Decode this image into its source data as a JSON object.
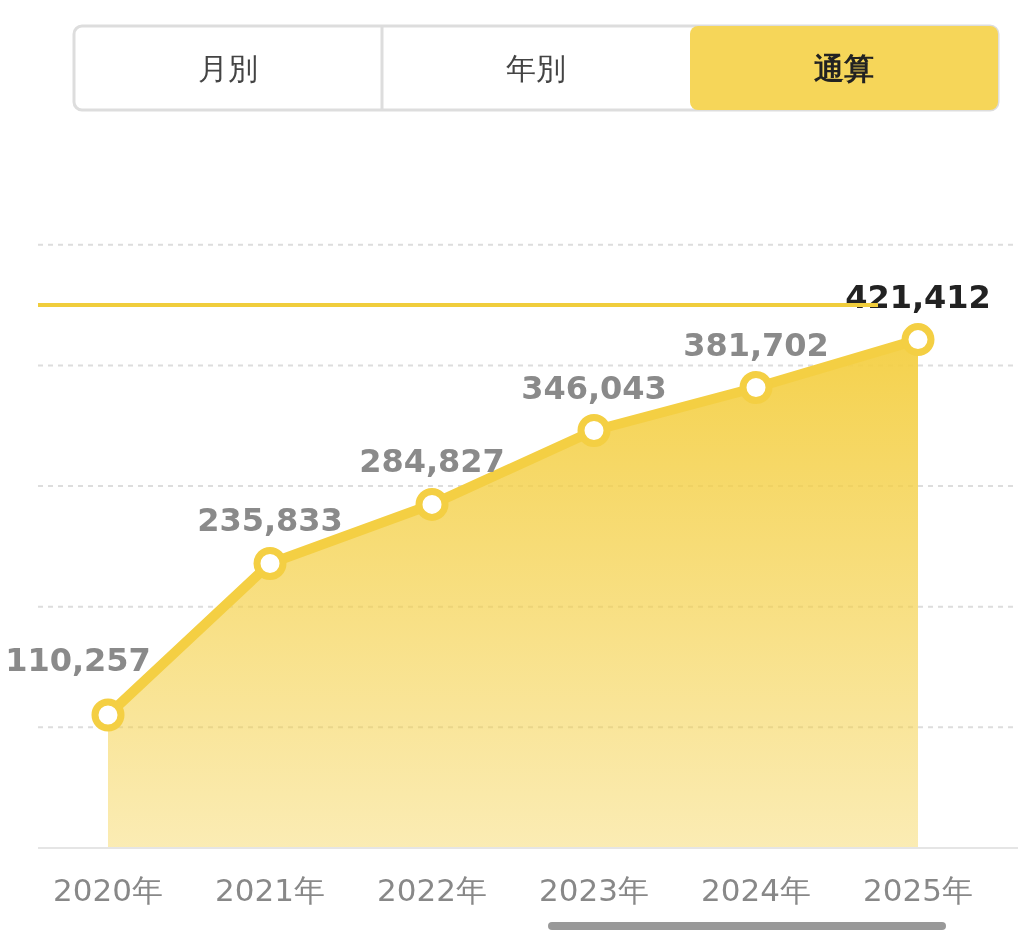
{
  "chart_data": {
    "type": "area",
    "categories": [
      "2020年",
      "2021年",
      "2022年",
      "2023年",
      "2024年",
      "2025年"
    ],
    "series": [
      {
        "color": "#f4cf43",
        "values": [
          110257,
          235833,
          284827,
          346043,
          381702,
          421412
        ],
        "value_labels": [
          "110,257",
          "235,833",
          "284,827",
          "346,043",
          "381,702",
          "421,412"
        ]
      }
    ],
    "tick_labels": "x",
    "grid": "y",
    "marker": "circle",
    "ref_lines": [
      {
        "axis": "y",
        "value": 450000,
        "label": null,
        "color": "#f0cd3c",
        "line_style": "solid"
      }
    ],
    "annotations": [
      "月別",
      "年別",
      "通算"
    ]
  }
}
